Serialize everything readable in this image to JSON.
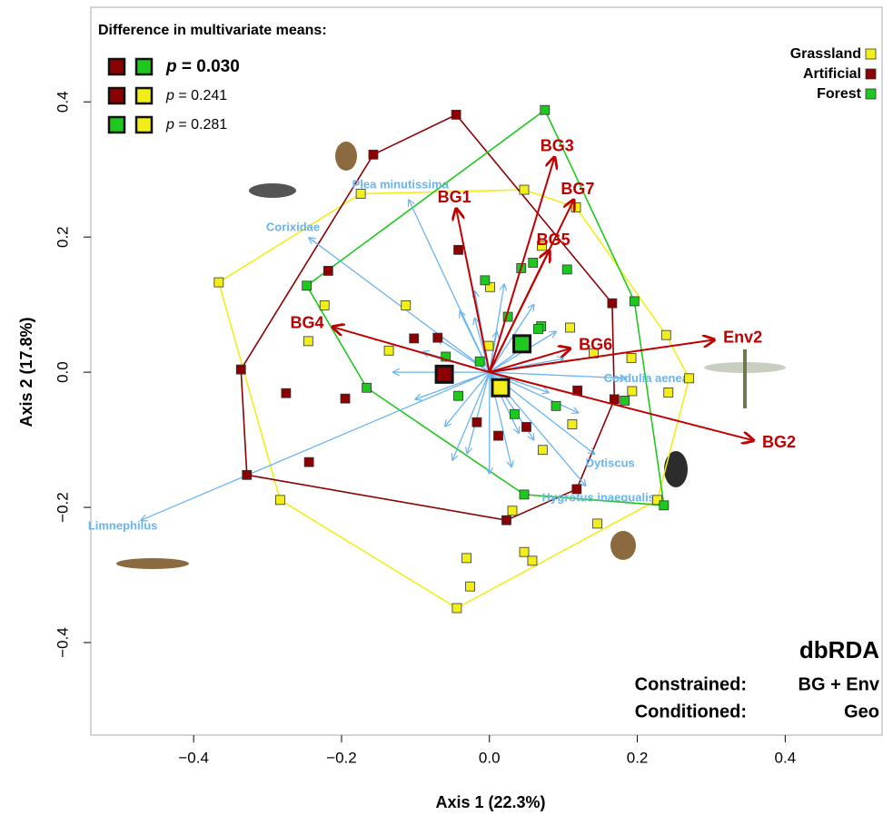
{
  "chart_data": {
    "type": "scatter",
    "xlabel": "Axis 1 (22.3%)",
    "ylabel": "Axis 2 (17.8%)",
    "xlim": [
      -0.539,
      0.531
    ],
    "ylim": [
      -0.537,
      0.54
    ],
    "xticks": [
      {
        "value": -0.4,
        "label": "−0.4"
      },
      {
        "value": -0.2,
        "label": "−0.2"
      },
      {
        "value": 0,
        "label": "0.0"
      },
      0.2,
      0.4
    ],
    "yticks": [
      {
        "value": -0.4,
        "label": "−0.4"
      },
      {
        "value": -0.2,
        "label": "−0.2"
      },
      {
        "value": 0,
        "label": "0.0"
      },
      0.2,
      0.4
    ],
    "legend_position": "upper right",
    "series": [
      {
        "name": "Grassland",
        "color": "#f2ee1a",
        "x": [
          -0.366,
          -0.174,
          0.047,
          0.117,
          0.071,
          0.001,
          -0.113,
          -0.223,
          -0.245,
          -0.136,
          -0.001,
          0.109,
          0.141,
          0.192,
          0.239,
          0.27,
          0.193,
          0.242,
          0.112,
          0.072,
          0.227,
          0.146,
          0.031,
          -0.283,
          -0.031,
          -0.026,
          0.047,
          0.058,
          -0.044
        ],
        "values": [
          0.133,
          0.264,
          0.27,
          0.244,
          0.187,
          0.126,
          0.099,
          0.099,
          0.046,
          0.032,
          0.039,
          0.066,
          0.028,
          0.021,
          0.055,
          -0.009,
          -0.028,
          -0.03,
          -0.077,
          -0.115,
          -0.189,
          -0.224,
          -0.205,
          -0.189,
          -0.275,
          -0.317,
          -0.266,
          -0.279,
          -0.349
        ]
      },
      {
        "name": "Artificial",
        "color": "#8b0000",
        "x": [
          -0.045,
          -0.157,
          -0.042,
          -0.218,
          -0.102,
          -0.07,
          -0.336,
          -0.275,
          -0.195,
          -0.244,
          -0.328,
          0.166,
          0.119,
          0.169,
          0.05,
          -0.017,
          0.012,
          0.118,
          0.023
        ],
        "values": [
          0.381,
          0.322,
          0.181,
          0.15,
          0.05,
          0.051,
          0.004,
          -0.031,
          -0.039,
          -0.133,
          -0.152,
          0.102,
          -0.027,
          -0.04,
          -0.081,
          -0.074,
          -0.094,
          -0.173,
          -0.219
        ]
      },
      {
        "name": "Forest",
        "color": "#1ec81e",
        "x": [
          0.075,
          -0.247,
          -0.006,
          0.043,
          0.059,
          0.105,
          0.025,
          0.07,
          0.066,
          0.196,
          -0.059,
          -0.013,
          -0.166,
          -0.042,
          0.09,
          0.034,
          0.183,
          0.236,
          0.047
        ],
        "values": [
          0.388,
          0.128,
          0.136,
          0.154,
          0.162,
          0.152,
          0.082,
          0.068,
          0.064,
          0.105,
          0.023,
          0.016,
          -0.023,
          -0.035,
          -0.05,
          -0.062,
          -0.042,
          -0.197,
          -0.181
        ]
      }
    ],
    "centroids": {
      "colors": [
        "#8b0000",
        "#1ec81e",
        "#f2ee1a"
      ],
      "x": [
        -0.061,
        0.044,
        0.015
      ],
      "y": [
        -0.003,
        0.042,
        -0.023
      ]
    },
    "constraint_vectors": {
      "color": "#c00000",
      "names": [
        "BG1",
        "BG3",
        "BG7",
        "BG5",
        "BG6",
        "BG4",
        "Env2",
        "BG2"
      ],
      "x": [
        -0.045,
        0.088,
        0.114,
        0.081,
        0.109,
        -0.212,
        0.304,
        0.357
      ],
      "y": [
        0.242,
        0.318,
        0.255,
        0.18,
        0.035,
        0.067,
        0.048,
        -0.101
      ]
    },
    "species_vectors": {
      "color": "#6ab4f0",
      "names": [
        "Plea minutissima",
        "Corixidae",
        "Limnephilus",
        "Cordulia aenea",
        "Dytiscus",
        "Hygrotus inaequalis",
        null,
        null,
        null,
        null,
        null,
        null,
        null,
        null,
        null,
        null,
        null,
        null,
        null,
        null,
        null,
        null,
        null,
        null,
        null,
        null,
        null,
        null
      ],
      "x": [
        -0.109,
        -0.244,
        -0.471,
        0.185,
        0.142,
        0.13,
        -0.02,
        0.02,
        0.06,
        0.09,
        0.1,
        0.08,
        0.04,
        -0.03,
        -0.06,
        -0.1,
        -0.13,
        -0.07,
        -0.04,
        0.0,
        0.03,
        0.06,
        -0.05,
        -0.02,
        0.01,
        0.05,
        -0.09,
        0.12
      ],
      "y": [
        0.255,
        0.199,
        -0.219,
        -0.009,
        -0.121,
        -0.168,
        0.12,
        0.13,
        0.1,
        0.06,
        0.02,
        -0.03,
        -0.09,
        -0.12,
        -0.08,
        -0.04,
        0.0,
        0.05,
        0.09,
        -0.15,
        -0.14,
        -0.1,
        -0.13,
        0.08,
        0.06,
        0.04,
        0.03,
        -0.06
      ]
    },
    "comparisons_title": "Difference in multivariate means:",
    "comparisons": [
      {
        "colors": [
          "#8b0000",
          "#1ec81e"
        ],
        "label": "p = 0.030"
      },
      {
        "colors": [
          "#8b0000",
          "#f2ee1a"
        ],
        "label": "p = 0.241"
      },
      {
        "colors": [
          "#1ec81e",
          "#f2ee1a"
        ],
        "label": "p = 0.281"
      }
    ],
    "method": "dbRDA",
    "model": [
      [
        "Constrained:",
        "BG + Env"
      ],
      [
        "Conditioned:",
        "Geo"
      ]
    ]
  }
}
